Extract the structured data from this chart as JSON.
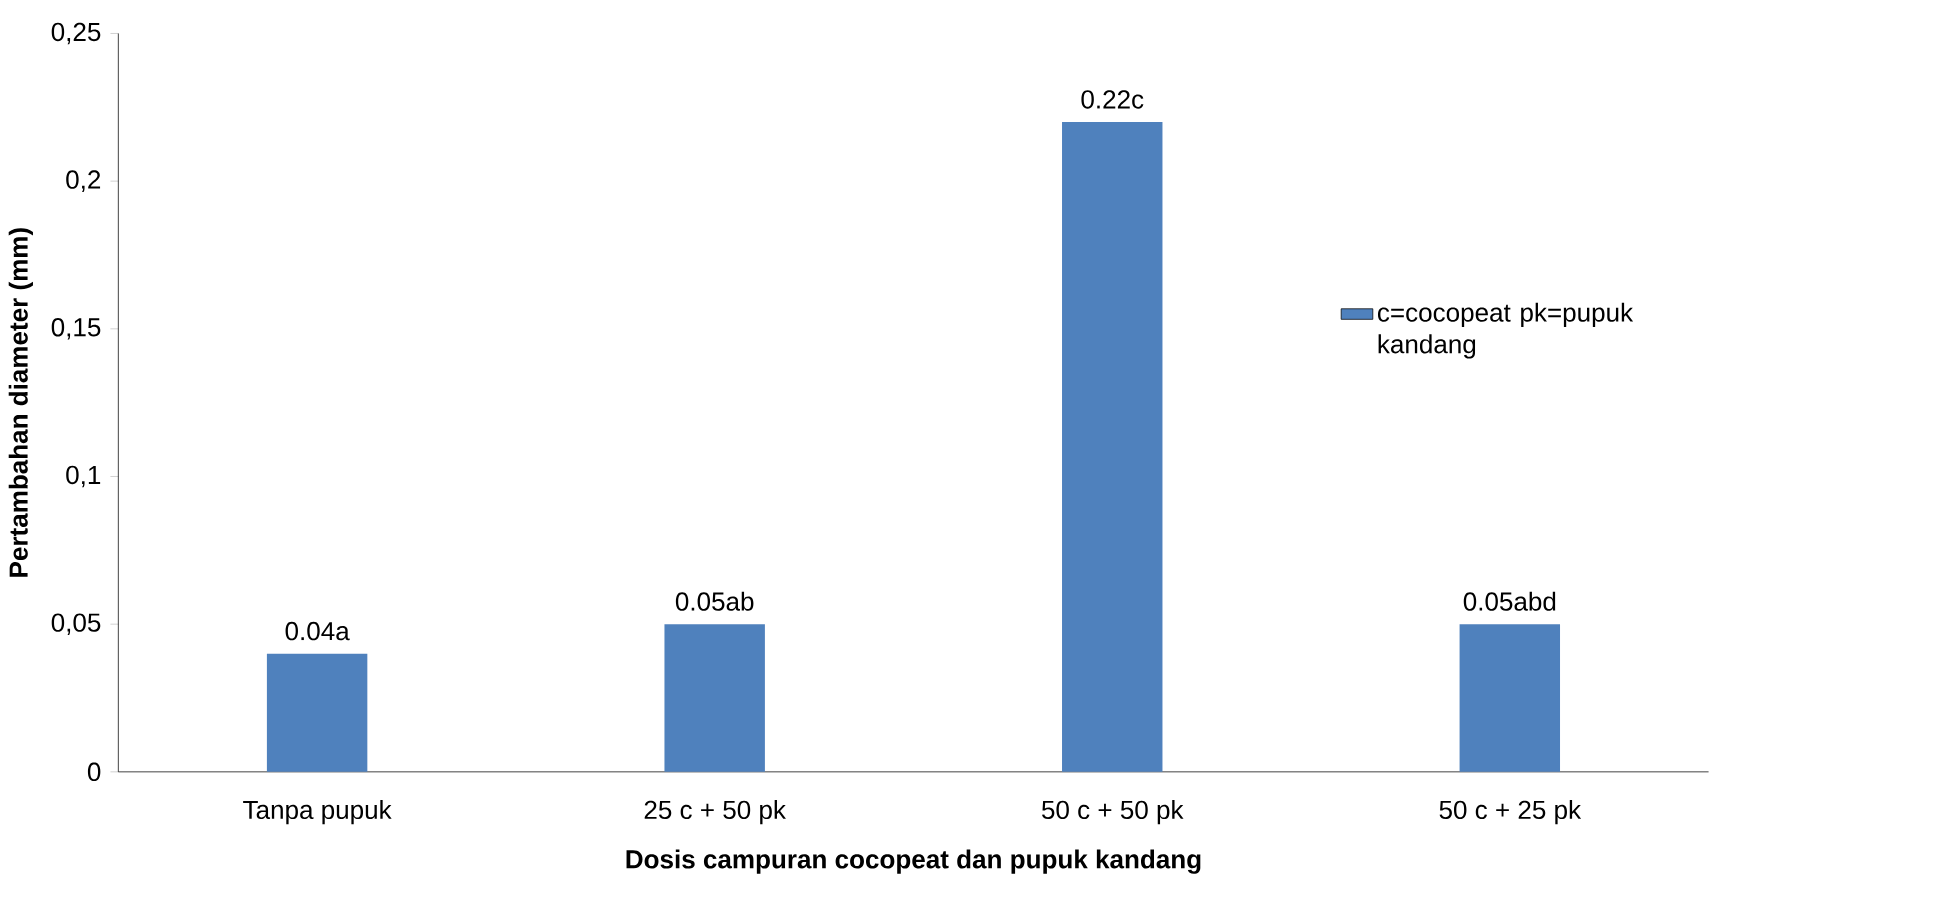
{
  "chart_data": {
    "type": "bar",
    "xlabel": "Dosis campuran cocopeat dan pupuk kandang",
    "ylabel": "Pertambahan diameter (mm)",
    "categories": [
      "Tanpa pupuk",
      "25 c + 50 pk",
      "50 c + 50 pk",
      "50 c + 25 pk"
    ],
    "series": [
      {
        "name": "c=cocopeat pk=pupuk kandang",
        "color": "#4f81bd",
        "values": [
          0.04,
          0.05,
          0.22,
          0.05
        ],
        "value_labels": [
          "0.04a",
          "0.05ab",
          "0.22c",
          "0.05abd"
        ]
      }
    ],
    "ylim": [
      0,
      0.25
    ],
    "yticks": [
      0,
      {
        "value": 0.05,
        "label": "0,05"
      },
      {
        "value": 0.1,
        "label": "0,1"
      },
      {
        "value": 0.15,
        "label": "0,15"
      },
      {
        "value": 0.2,
        "label": "0,2"
      },
      {
        "value": 0.25,
        "label": "0,25"
      }
    ],
    "grid": false,
    "legend": "right"
  }
}
